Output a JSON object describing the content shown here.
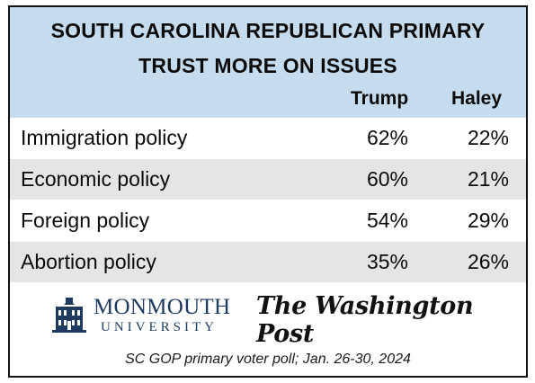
{
  "chart_data": {
    "type": "table",
    "title_line1": "SOUTH CAROLINA REPUBLICAN PRIMARY",
    "title_line2": "TRUST MORE ON ISSUES",
    "columns": [
      "Trump",
      "Haley"
    ],
    "rows": [
      {
        "label": "Immigration policy",
        "values": [
          "62%",
          "22%"
        ]
      },
      {
        "label": "Economic policy",
        "values": [
          "60%",
          "21%"
        ]
      },
      {
        "label": "Foreign policy",
        "values": [
          "54%",
          "29%"
        ]
      },
      {
        "label": "Abortion policy",
        "values": [
          "35%",
          "26%"
        ]
      }
    ]
  },
  "logos": {
    "monmouth_name": "MONMOUTH",
    "monmouth_sub": "UNIVERSITY",
    "wapo": "The Washington Post"
  },
  "footer": "SC GOP primary voter poll;  Jan. 26-30, 2024",
  "colors": {
    "header_bg": "#c5dbee",
    "row_shade": "#e5e5e5",
    "monmouth_blue": "#1e3a5f"
  }
}
